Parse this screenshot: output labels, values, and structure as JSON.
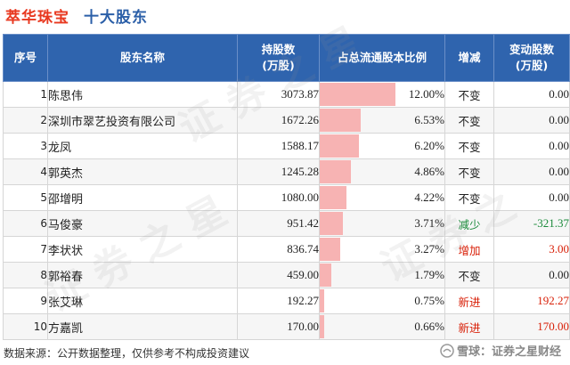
{
  "header": {
    "company": "萃华珠宝",
    "subtitle": "十大股东"
  },
  "table": {
    "columns": [
      "序号",
      "股东名称",
      "持股数\n(万股)",
      "占总流通股本比例",
      "增减",
      "变动股数\n(万股)"
    ],
    "rows": [
      {
        "idx": "1",
        "name": "陈思伟",
        "shares": "3073.87",
        "ratio": "12.00%",
        "ratio_value": 12.0,
        "change": "不变",
        "change_type": "unchanged",
        "delta": "0.00"
      },
      {
        "idx": "2",
        "name": "深圳市翠艺投资有限公司",
        "shares": "1672.26",
        "ratio": "6.53%",
        "ratio_value": 6.53,
        "change": "不变",
        "change_type": "unchanged",
        "delta": "0.00"
      },
      {
        "idx": "3",
        "name": "龙凤",
        "shares": "1588.17",
        "ratio": "6.20%",
        "ratio_value": 6.2,
        "change": "不变",
        "change_type": "unchanged",
        "delta": "0.00"
      },
      {
        "idx": "4",
        "name": "郭英杰",
        "shares": "1245.28",
        "ratio": "4.86%",
        "ratio_value": 4.86,
        "change": "不变",
        "change_type": "unchanged",
        "delta": "0.00"
      },
      {
        "idx": "5",
        "name": "邵增明",
        "shares": "1080.00",
        "ratio": "4.22%",
        "ratio_value": 4.22,
        "change": "不变",
        "change_type": "unchanged",
        "delta": "0.00"
      },
      {
        "idx": "6",
        "name": "马俊豪",
        "shares": "951.42",
        "ratio": "3.71%",
        "ratio_value": 3.71,
        "change": "减少",
        "change_type": "decrease",
        "delta": "-321.37"
      },
      {
        "idx": "7",
        "name": "李状状",
        "shares": "836.74",
        "ratio": "3.27%",
        "ratio_value": 3.27,
        "change": "增加",
        "change_type": "increase",
        "delta": "3.00"
      },
      {
        "idx": "8",
        "name": "郭裕春",
        "shares": "459.00",
        "ratio": "1.79%",
        "ratio_value": 1.79,
        "change": "不变",
        "change_type": "unchanged",
        "delta": "0.00"
      },
      {
        "idx": "9",
        "name": "张艾琳",
        "shares": "192.27",
        "ratio": "0.75%",
        "ratio_value": 0.75,
        "change": "新进",
        "change_type": "new",
        "delta": "192.27"
      },
      {
        "idx": "10",
        "name": "方嘉凯",
        "shares": "170.00",
        "ratio": "0.66%",
        "ratio_value": 0.66,
        "change": "新进",
        "change_type": "new",
        "delta": "170.00"
      }
    ]
  },
  "footer": {
    "source": "数据来源：公开数据整理，仅供参考不构成投资建议"
  },
  "brand": {
    "text": "雪球：证券之星财经",
    "icon": "snowball-icon"
  },
  "colors": {
    "header_bg": "#2f64ae",
    "company": "#e8381f",
    "subtitle": "#2b5fa8",
    "bar": "#f7b3b3",
    "decrease": "#1a8a3a",
    "increase": "#d81e06"
  }
}
